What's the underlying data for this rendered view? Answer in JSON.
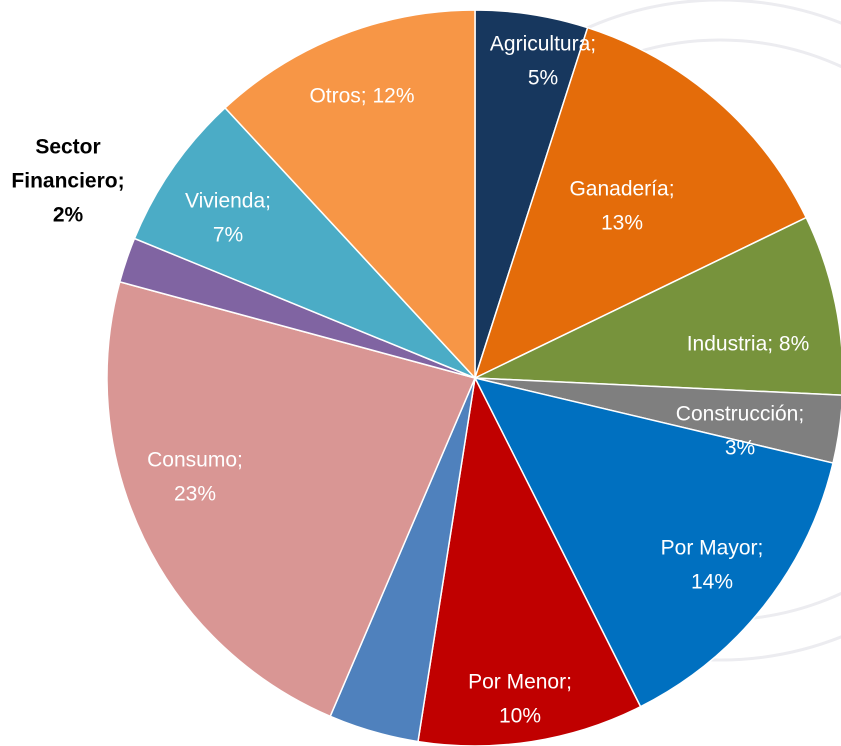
{
  "chart_data": {
    "type": "pie",
    "labels": [
      [
        "Agricultura;",
        "5%"
      ],
      [
        "Ganadería;",
        "13%"
      ],
      [
        "Industria; 8%"
      ],
      [
        "Construcción;",
        "3%"
      ],
      [
        "Por Mayor;",
        "14%"
      ],
      [
        "Por Menor;",
        "10%"
      ],
      null,
      [
        "Consumo;",
        "23%"
      ],
      [
        "Sector",
        "Financiero;",
        "2%"
      ],
      [
        "Vivienda;",
        "7%"
      ],
      [
        "Otros; 12%"
      ]
    ],
    "values": [
      5,
      13,
      8,
      3,
      14,
      10,
      4,
      23,
      2,
      7,
      12
    ],
    "colors": [
      "#17375e",
      "#e46c0a",
      "#77933c",
      "#7f7f7f",
      "#0070c0",
      "#c00000",
      "#4f81bd",
      "#d99694",
      "#8064a2",
      "#4bacc6",
      "#f79646"
    ]
  }
}
